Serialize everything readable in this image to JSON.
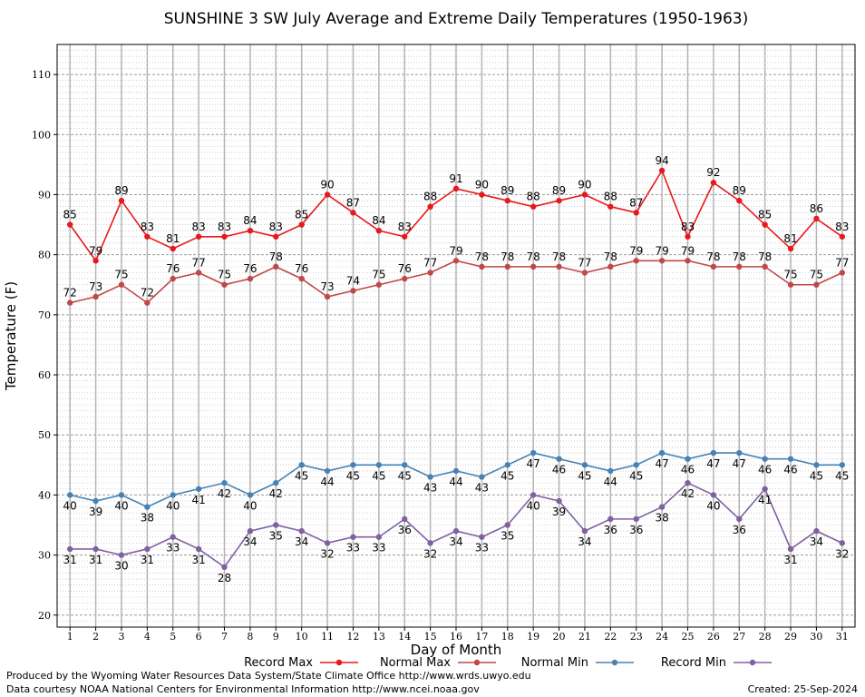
{
  "chart_data": {
    "type": "line",
    "title": "SUNSHINE 3 SW July Average and Extreme Daily Temperatures (1950-1963)",
    "xlabel": "Day of Month",
    "ylabel": "Temperature (F)",
    "ylim": [
      18,
      115
    ],
    "yticks": [
      20,
      30,
      40,
      50,
      60,
      70,
      80,
      90,
      100,
      110
    ],
    "x": [
      1,
      2,
      3,
      4,
      5,
      6,
      7,
      8,
      9,
      10,
      11,
      12,
      13,
      14,
      15,
      16,
      17,
      18,
      19,
      20,
      21,
      22,
      23,
      24,
      25,
      26,
      27,
      28,
      29,
      30,
      31
    ],
    "grid": true,
    "legend_position": "bottom",
    "series": [
      {
        "name": "Record Max",
        "color": "#e8191c",
        "values": [
          85,
          79,
          89,
          83,
          81,
          83,
          83,
          84,
          83,
          85,
          90,
          87,
          84,
          83,
          88,
          91,
          90,
          89,
          88,
          89,
          90,
          88,
          87,
          94,
          83,
          92,
          89,
          85,
          81,
          86,
          83
        ]
      },
      {
        "name": "Normal Max",
        "color": "#c04848",
        "values": [
          72,
          73,
          75,
          72,
          76,
          77,
          75,
          76,
          78,
          76,
          73,
          74,
          75,
          76,
          77,
          79,
          78,
          78,
          78,
          78,
          77,
          78,
          79,
          79,
          79,
          78,
          78,
          78,
          75,
          75,
          77
        ]
      },
      {
        "name": "Normal Min",
        "color": "#4682b4",
        "values": [
          40,
          39,
          40,
          38,
          40,
          41,
          42,
          40,
          42,
          45,
          44,
          45,
          45,
          45,
          43,
          44,
          43,
          45,
          47,
          46,
          45,
          44,
          45,
          47,
          46,
          47,
          47,
          46,
          46,
          45,
          45
        ]
      },
      {
        "name": "Record Min",
        "color": "#8060a0",
        "values": [
          31,
          31,
          30,
          31,
          33,
          31,
          28,
          34,
          35,
          34,
          32,
          33,
          33,
          36,
          32,
          34,
          33,
          35,
          40,
          39,
          34,
          36,
          36,
          38,
          42,
          40,
          36,
          41,
          31,
          34,
          32
        ]
      }
    ]
  },
  "footer": {
    "line1": "Produced by the Wyoming Water Resources Data System/State Climate Office http://www.wrds.uwyo.edu",
    "line2": "Data courtesy NOAA National Centers for Environmental Information http://www.ncei.noaa.gov",
    "created": "Created:  25-Sep-2024"
  }
}
